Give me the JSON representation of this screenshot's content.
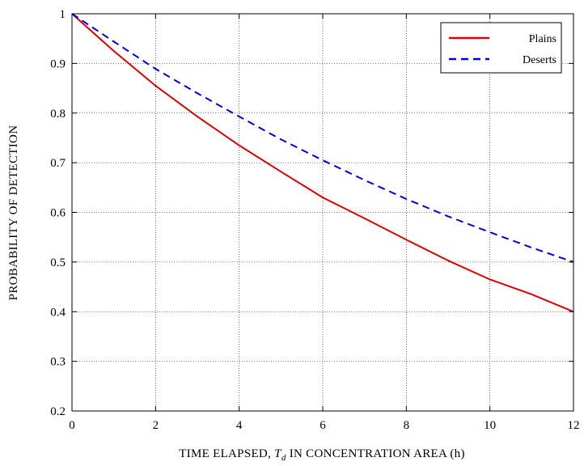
{
  "chart_data": {
    "type": "line",
    "title": "",
    "xlabel": {
      "before": "TIME ELAPSED, ",
      "symbol": "T",
      "subscript": "d",
      "after": " IN CONCENTRATION AREA (h)"
    },
    "ylabel": "PROBABILITY OF DETECTION",
    "xlim": [
      0,
      12
    ],
    "ylim": [
      0.2,
      1
    ],
    "xticks": [
      0,
      2,
      4,
      6,
      8,
      10,
      12
    ],
    "yticks": [
      0.2,
      0.3,
      0.4,
      0.5,
      0.6,
      0.7,
      0.8,
      0.9,
      1
    ],
    "xtick_labels": [
      "0",
      "2",
      "4",
      "6",
      "8",
      "10",
      "12"
    ],
    "ytick_labels": [
      "0.2",
      "0.3",
      "0.4",
      "0.5",
      "0.6",
      "0.7",
      "0.8",
      "0.9",
      "1"
    ],
    "grid": true,
    "legend_position": "top-right",
    "series": [
      {
        "name": "Plains",
        "color": "#e00000",
        "style": "solid",
        "x": [
          0,
          1,
          2,
          3,
          4,
          5,
          6,
          7,
          8,
          9,
          10,
          11,
          12
        ],
        "y": [
          1.0,
          0.925,
          0.855,
          0.793,
          0.735,
          0.682,
          0.63,
          0.588,
          0.545,
          0.503,
          0.465,
          0.435,
          0.4
        ]
      },
      {
        "name": "Deserts",
        "color": "#0000e0",
        "style": "dashed",
        "x": [
          0,
          1,
          2,
          3,
          4,
          5,
          6,
          7,
          8,
          9,
          10,
          11,
          12
        ],
        "y": [
          1.0,
          0.944,
          0.889,
          0.84,
          0.793,
          0.747,
          0.705,
          0.665,
          0.627,
          0.592,
          0.56,
          0.529,
          0.5
        ]
      }
    ]
  }
}
